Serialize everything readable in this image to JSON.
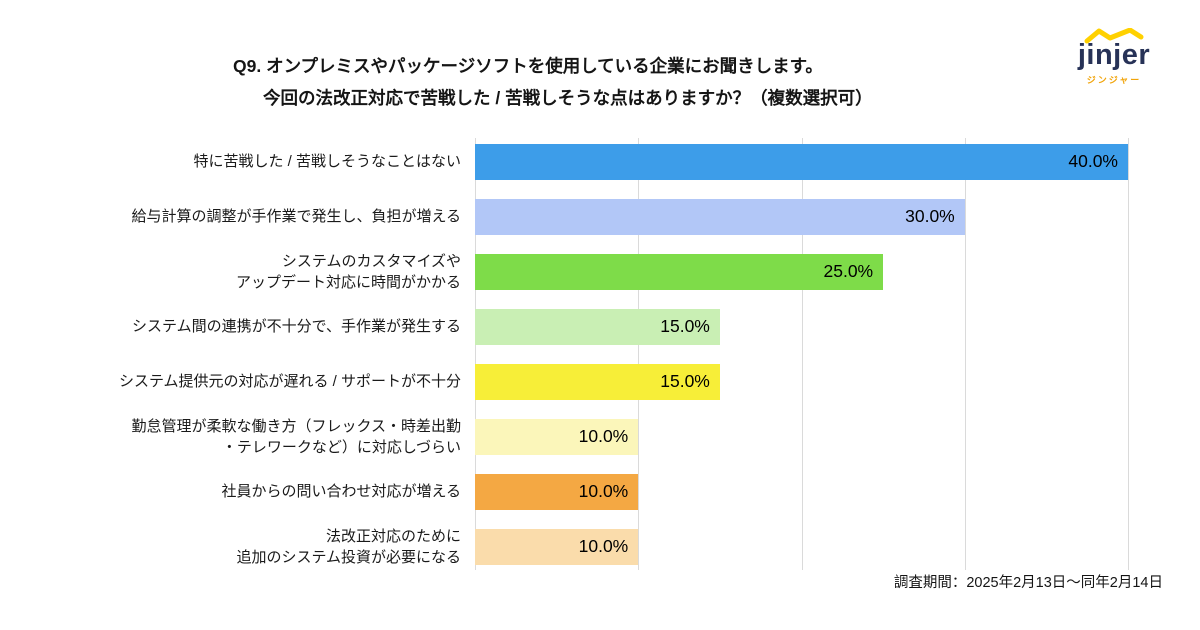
{
  "header": {
    "title_line1": "Q9. オンプレミスやパッケージソフトを使用している企業にお聞きします。",
    "title_line2": "今回の法改正対応で苦戦した / 苦戦しそうな点はありますか？（複数選択可）",
    "logo_text": "jinjer",
    "logo_subtext": "ジンジャー",
    "logo_color": "#273257",
    "logo_accent_color": "#ffd100"
  },
  "footer": {
    "survey_period": "調査期間：2025年2月13日～同年2月14日"
  },
  "chart_data": {
    "type": "bar",
    "orientation": "horizontal",
    "title": "Q9. オンプレミスやパッケージソフトを使用している企業にお聞きします。今回の法改正対応で苦戦した / 苦戦しそうな点はありますか？（複数選択可）",
    "categories": [
      "特に苦戦した / 苦戦しそうなことはない",
      "給与計算の調整が手作業で発生し、負担が増える",
      "システムのカスタマイズや\nアップデート対応に時間がかかる",
      "システム間の連携が不十分で、手作業が発生する",
      "システム提供元の対応が遅れる / サポートが不十分",
      "勤怠管理が柔軟な働き方（フレックス・時差出勤\n・テレワークなど）に対応しづらい",
      "社員からの問い合わせ対応が増える",
      "法改正対応のために\n追加のシステム投資が必要になる"
    ],
    "values": [
      40.0,
      30.0,
      25.0,
      15.0,
      15.0,
      10.0,
      10.0,
      10.0
    ],
    "value_labels": [
      "40.0%",
      "30.0%",
      "25.0%",
      "15.0%",
      "15.0%",
      "10.0%",
      "10.0%",
      "10.0%"
    ],
    "bar_colors": [
      "#3d9de9",
      "#b2c7f7",
      "#7edc49",
      "#c9efb4",
      "#f7ee38",
      "#fbf6ba",
      "#f4a843",
      "#fadcab"
    ],
    "xlabel": "",
    "ylabel": "",
    "xlim": [
      0,
      40
    ],
    "grid": true,
    "gridline_values": [
      0,
      10,
      20,
      30,
      40
    ],
    "legend": "none",
    "value_label_position": "inside-end"
  }
}
